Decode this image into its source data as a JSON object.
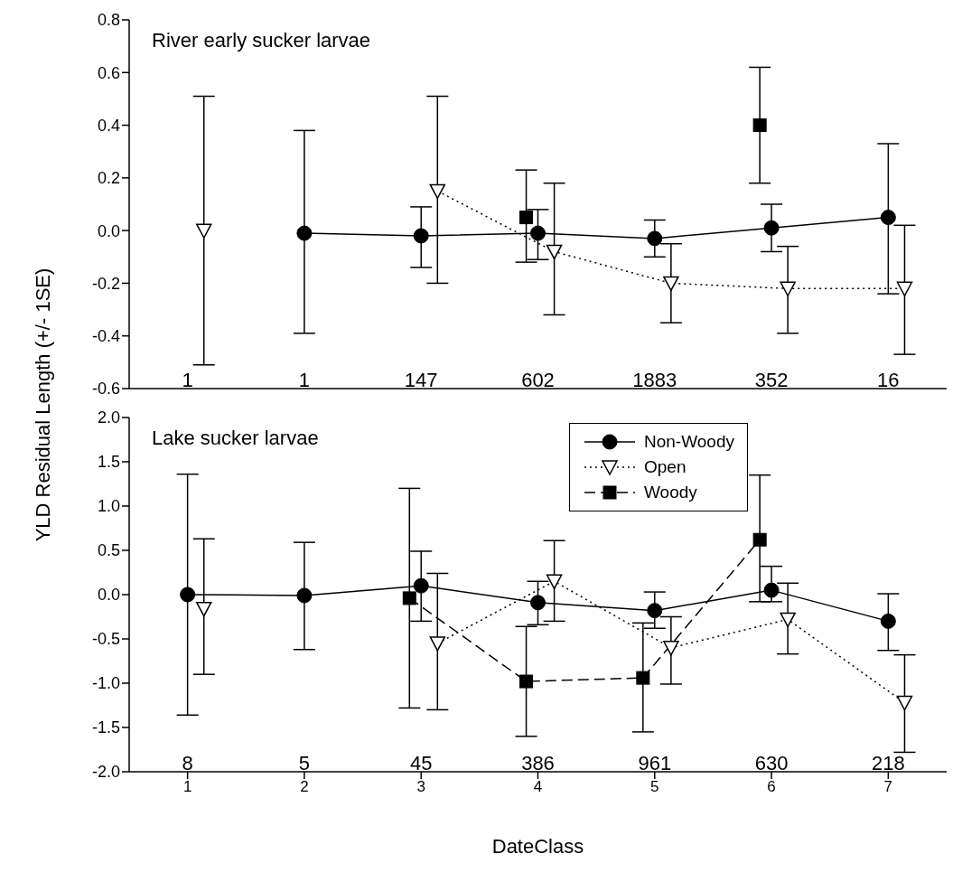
{
  "chart_data": [
    {
      "type": "line",
      "title": "River early sucker larvae",
      "ylabel": "YLD Residual Length (+/- 1SE)",
      "xlim": [
        0.5,
        7.5
      ],
      "xticks": [
        1,
        2,
        3,
        4,
        5,
        6,
        7
      ],
      "ylim": [
        -0.6,
        0.8
      ],
      "yticks": [
        -0.6,
        -0.4,
        -0.2,
        {
          "value": 0,
          "label": "0.0"
        },
        0.2,
        0.4,
        0.6,
        0.8
      ],
      "tick_labels": "y",
      "series": [
        {
          "color": "#000000",
          "marker": "circle",
          "line_style": "solid",
          "x": [
            2,
            3,
            4,
            5,
            6,
            7
          ],
          "values": [
            -0.01,
            -0.02,
            -0.01,
            -0.03,
            0.01,
            0.05
          ],
          "errors": [
            [
              -0.39,
              0.38
            ],
            [
              -0.14,
              0.09
            ],
            [
              -0.11,
              0.08
            ],
            [
              -0.1,
              0.04
            ],
            [
              -0.08,
              0.1
            ],
            [
              -0.24,
              0.33
            ]
          ]
        },
        {
          "color": "#000000",
          "marker": "triangle",
          "line_style": "dotted",
          "x": [
            1.14,
            2.14,
            3.14,
            4.14,
            5.14,
            6.14,
            7.14
          ],
          "values": [
            0.0,
            null,
            0.15,
            -0.08,
            -0.2,
            -0.22,
            -0.22
          ],
          "errors": [
            [
              -0.51,
              0.51
            ],
            null,
            [
              -0.2,
              0.51
            ],
            [
              -0.32,
              0.18
            ],
            [
              -0.35,
              -0.05
            ],
            [
              -0.39,
              -0.06
            ],
            [
              -0.47,
              0.02
            ]
          ]
        },
        {
          "color": "#000000",
          "marker": "square",
          "line_style": "dashed",
          "x": [
            3.9,
            4.9,
            5.9
          ],
          "values": [
            0.05,
            null,
            0.4
          ],
          "errors": [
            [
              -0.12,
              0.23
            ],
            null,
            [
              0.18,
              0.62
            ]
          ]
        }
      ],
      "annotations": [
        "1",
        "1",
        "147",
        "602",
        "1883",
        "352",
        "16"
      ]
    },
    {
      "type": "line",
      "title": "Lake sucker larvae",
      "xlabel": "DateClass",
      "xlim": [
        0.5,
        7.5
      ],
      "xticks": [
        1,
        2,
        3,
        4,
        5,
        6,
        7
      ],
      "ylim": [
        -2.0,
        2.0
      ],
      "yticks": [
        {
          "value": -2,
          "label": "-2.0"
        },
        {
          "value": -1.5,
          "label": "-1.5"
        },
        {
          "value": -1,
          "label": "-1.0"
        },
        {
          "value": -0.5,
          "label": "-0.5"
        },
        {
          "value": 0,
          "label": "0.0"
        },
        {
          "value": 0.5,
          "label": "0.5"
        },
        {
          "value": 1,
          "label": "1.0"
        },
        {
          "value": 1.5,
          "label": "1.5"
        },
        {
          "value": 2,
          "label": "2.0"
        }
      ],
      "legend": "top right",
      "series": [
        {
          "name": "Non-Woody",
          "color": "#000000",
          "marker": "circle",
          "line_style": "solid",
          "x": [
            1,
            2,
            3,
            4,
            5,
            6,
            7
          ],
          "values": [
            0.0,
            -0.01,
            0.1,
            -0.09,
            -0.18,
            0.05,
            -0.3
          ],
          "errors": [
            [
              -1.36,
              1.36
            ],
            [
              -0.62,
              0.59
            ],
            [
              -0.3,
              0.49
            ],
            [
              -0.34,
              0.15
            ],
            [
              -0.38,
              0.03
            ],
            [
              -0.08,
              0.32
            ],
            [
              -0.63,
              0.01
            ]
          ]
        },
        {
          "name": "Open",
          "color": "#000000",
          "marker": "triangle",
          "line_style": "dotted",
          "x": [
            1.14,
            2.14,
            3.14,
            4.14,
            5.14,
            6.14,
            7.14
          ],
          "values": [
            -0.16,
            null,
            -0.55,
            0.15,
            -0.6,
            -0.28,
            -1.22
          ],
          "errors": [
            [
              -0.9,
              0.63
            ],
            null,
            [
              -1.3,
              0.24
            ],
            [
              -0.3,
              0.61
            ],
            [
              -1.01,
              -0.25
            ],
            [
              -0.67,
              0.13
            ],
            [
              -1.78,
              -0.68
            ]
          ]
        },
        {
          "name": "Woody",
          "color": "#000000",
          "marker": "square",
          "line_style": "dashed",
          "x": [
            2.9,
            3.9,
            4.9,
            5.9
          ],
          "values": [
            -0.04,
            -0.98,
            -0.94,
            0.62
          ],
          "errors": [
            [
              -1.28,
              1.2
            ],
            [
              -1.6,
              -0.36
            ],
            [
              -1.55,
              -0.32
            ],
            [
              -0.08,
              1.35
            ]
          ]
        }
      ],
      "annotations": [
        "8",
        "5",
        "45",
        "386",
        "961",
        "630",
        "218"
      ]
    }
  ]
}
